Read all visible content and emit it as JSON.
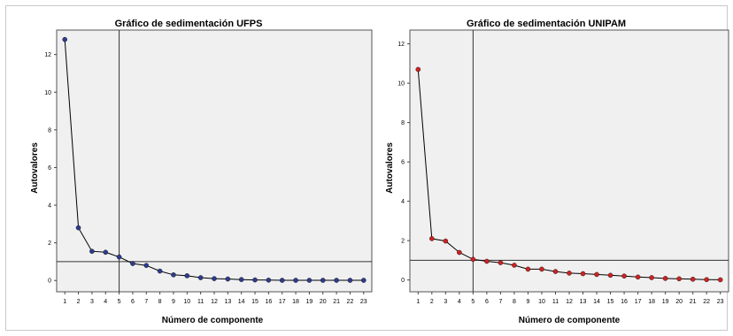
{
  "chart_data": [
    {
      "type": "line",
      "title": "Gráfico de sedimentación UFPS",
      "xlabel": "Número de componente",
      "ylabel": "Autovalores",
      "x": [
        1,
        2,
        3,
        4,
        5,
        6,
        7,
        8,
        9,
        10,
        11,
        12,
        13,
        14,
        15,
        16,
        17,
        18,
        19,
        20,
        21,
        22,
        23
      ],
      "y": [
        12.8,
        2.8,
        1.55,
        1.5,
        1.25,
        0.9,
        0.8,
        0.5,
        0.3,
        0.25,
        0.15,
        0.1,
        0.08,
        0.05,
        0.03,
        0.02,
        0.01,
        0.01,
        0.01,
        0.01,
        0.01,
        0.01,
        0.01
      ],
      "ylim": [
        -0.6,
        13.3
      ],
      "yticks": [
        0,
        2,
        4,
        6,
        8,
        10,
        12
      ],
      "reference_lines": {
        "x": 5,
        "y": 1
      },
      "marker_color": "#2e3b8c",
      "line_color": "#000000",
      "plot_background": "#f0f0f0",
      "grid": false
    },
    {
      "type": "line",
      "title": "Gráfico de sedimentación UNIPAM",
      "xlabel": "Número de componente",
      "ylabel": "Autovalores",
      "x": [
        1,
        2,
        3,
        4,
        5,
        6,
        7,
        8,
        9,
        10,
        11,
        12,
        13,
        14,
        15,
        16,
        17,
        18,
        19,
        20,
        21,
        22,
        23
      ],
      "y": [
        10.7,
        2.1,
        1.98,
        1.4,
        1.05,
        0.95,
        0.88,
        0.75,
        0.55,
        0.55,
        0.43,
        0.35,
        0.32,
        0.28,
        0.24,
        0.2,
        0.15,
        0.12,
        0.08,
        0.06,
        0.04,
        0.02,
        0.01
      ],
      "ylim": [
        -0.6,
        12.7
      ],
      "yticks": [
        0,
        2,
        4,
        6,
        8,
        10,
        12
      ],
      "reference_lines": {
        "x": 5,
        "y": 1
      },
      "marker_color": "#cc2222",
      "line_color": "#000000",
      "plot_background": "#f0f0f0",
      "grid": false
    }
  ]
}
